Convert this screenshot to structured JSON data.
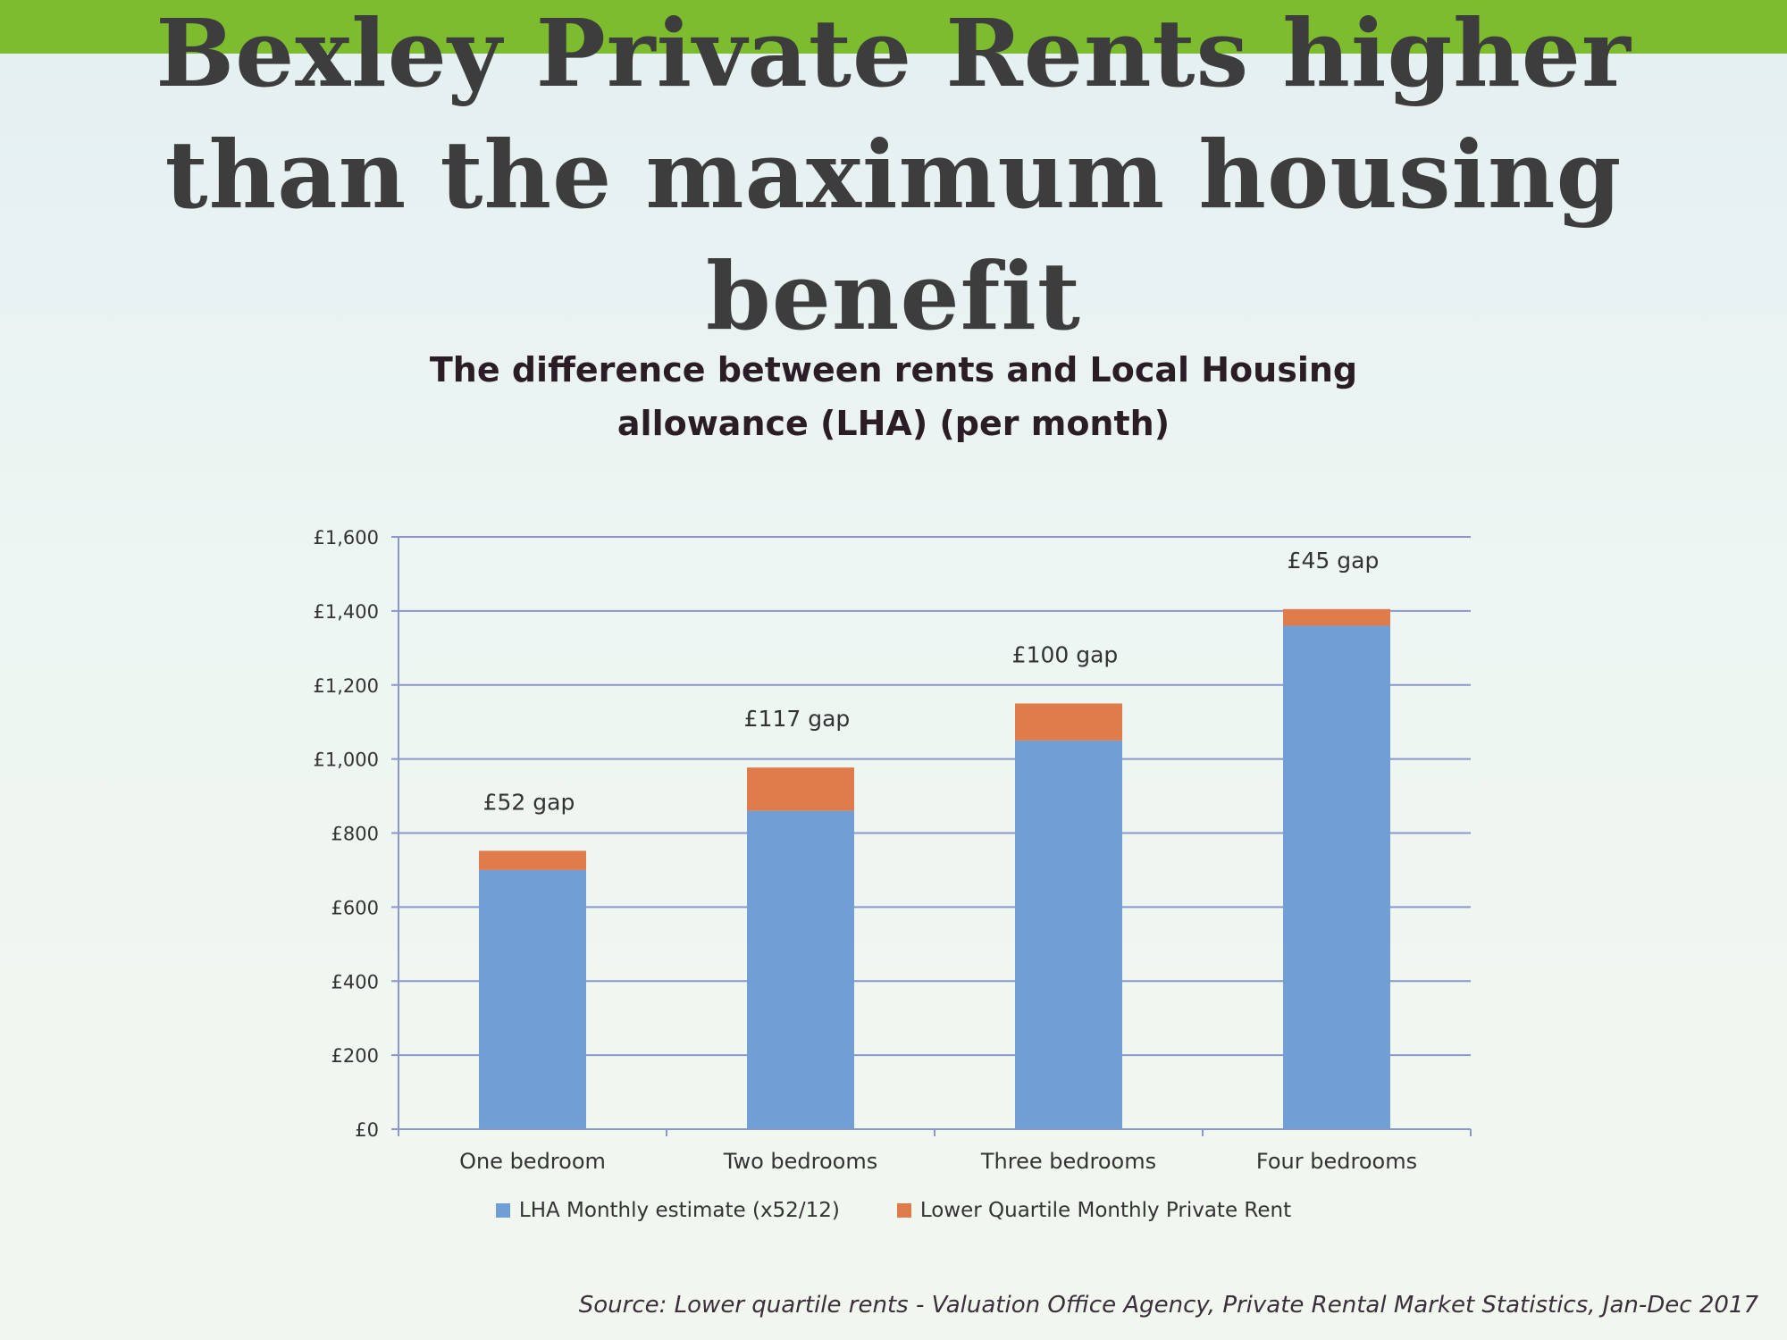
{
  "slide": {
    "title_lines": [
      "Bexley Private Rents  higher",
      "than the maximum housing",
      "benefit"
    ],
    "source": "Source: Lower quartile rents - Valuation Office Agency, Private Rental Market Statistics, Jan-Dec 2017"
  },
  "colors": {
    "band": "#7dbb2f",
    "lha": "#6f9fd4",
    "rent_gap": "#e07b4c",
    "grid": "#8a96cc"
  },
  "chart_data": {
    "type": "bar",
    "stacked": true,
    "title_lines": [
      "The difference between rents and Local Housing",
      "allowance (LHA) (per month)"
    ],
    "categories": [
      "One bedroom",
      "Two bedrooms",
      "Three bedrooms",
      "Four bedrooms"
    ],
    "series": [
      {
        "name": "LHA Monthly estimate (x52/12)",
        "values": [
          700,
          860,
          1050,
          1360
        ]
      },
      {
        "name": "Lower Quartile Monthly Private Rent",
        "values": [
          52,
          117,
          100,
          45
        ]
      }
    ],
    "bar_labels": [
      "£52 gap",
      "£117 gap",
      "£100 gap",
      "£45 gap"
    ],
    "ylim": [
      0,
      1600
    ],
    "yticks": [
      0,
      200,
      400,
      600,
      800,
      1000,
      1200,
      1400,
      1600
    ],
    "ytick_labels": [
      "£0",
      "£200",
      "£400",
      "£600",
      "£800",
      "£1,000",
      "£1,200",
      "£1,400",
      "£1,600"
    ],
    "grid": true,
    "legend_position": "bottom"
  }
}
